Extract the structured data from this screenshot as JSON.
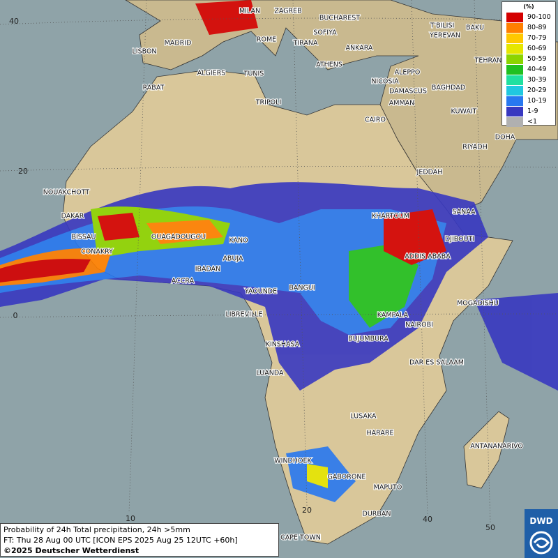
{
  "map": {
    "cities": [
      "MILAN",
      "ZAGREB",
      "BUCHAREST",
      "MADRID",
      "ROME",
      "SOFIYA",
      "T'BILISI",
      "BAKU",
      "LISBON",
      "TIRANA",
      "ANKARA",
      "YEREVAN",
      "TEHRAN",
      "ATHENS",
      "ALGIERS",
      "TUNIS",
      "ALEPPO",
      "RABAT",
      "NICOSIA",
      "BAGHDAD",
      "DAMASCUS",
      "TRIPOLI",
      "AMMAN",
      "KUWAIT",
      "CAIRO",
      "DOHA",
      "RIYADH",
      "JEDDAH",
      "NOUAKCHOTT",
      "SANAA",
      "KHARTOUM",
      "DAKAR",
      "DJIBOUTI",
      "BISSAU",
      "OUAGADOUGOU",
      "KANO",
      "CONAKRY",
      "ADDIS ABABA",
      "ABUJA",
      "IBADAN",
      "ACCRA",
      "YAOUNDE",
      "BANGUI",
      "MOGADISHU",
      "LIBREVILLE",
      "KAMPALA",
      "NAIROBI",
      "KINSHASA",
      "BUJUMBURA",
      "DAR ES SALAAM",
      "LUANDA",
      "LUSAKA",
      "HARARE",
      "ANTANANARIVO",
      "WINDHOEK",
      "GABORONE",
      "MAPUTO",
      "DURBAN",
      "CAPE TOWN"
    ],
    "graticule_labels": [
      "40",
      "20",
      "0",
      "10",
      "20",
      "40",
      "50"
    ],
    "legend": {
      "title": "(%)",
      "items": [
        {
          "label": "90-100",
          "color": "#d40000"
        },
        {
          "label": "80-89",
          "color": "#ff7f00"
        },
        {
          "label": "70-79",
          "color": "#ffc800"
        },
        {
          "label": "60-69",
          "color": "#e6e600"
        },
        {
          "label": "50-59",
          "color": "#8cd400"
        },
        {
          "label": "40-49",
          "color": "#20c020"
        },
        {
          "label": "30-39",
          "color": "#20e0a0"
        },
        {
          "label": "20-29",
          "color": "#20c8e0"
        },
        {
          "label": "10-19",
          "color": "#2878f0"
        },
        {
          "label": "1-9",
          "color": "#3838c0"
        },
        {
          "label": "<1",
          "color": "#b0b0b0"
        }
      ]
    },
    "caption": [
      "Probability of 24h Total precipitation, 24h >5mm",
      "FT: Thu 28 Aug 00 UTC [ICON EPS 2025 Aug 25 12UTC +60h]",
      "©2025 Deutscher Wetterdienst"
    ],
    "logo": "DWD"
  }
}
